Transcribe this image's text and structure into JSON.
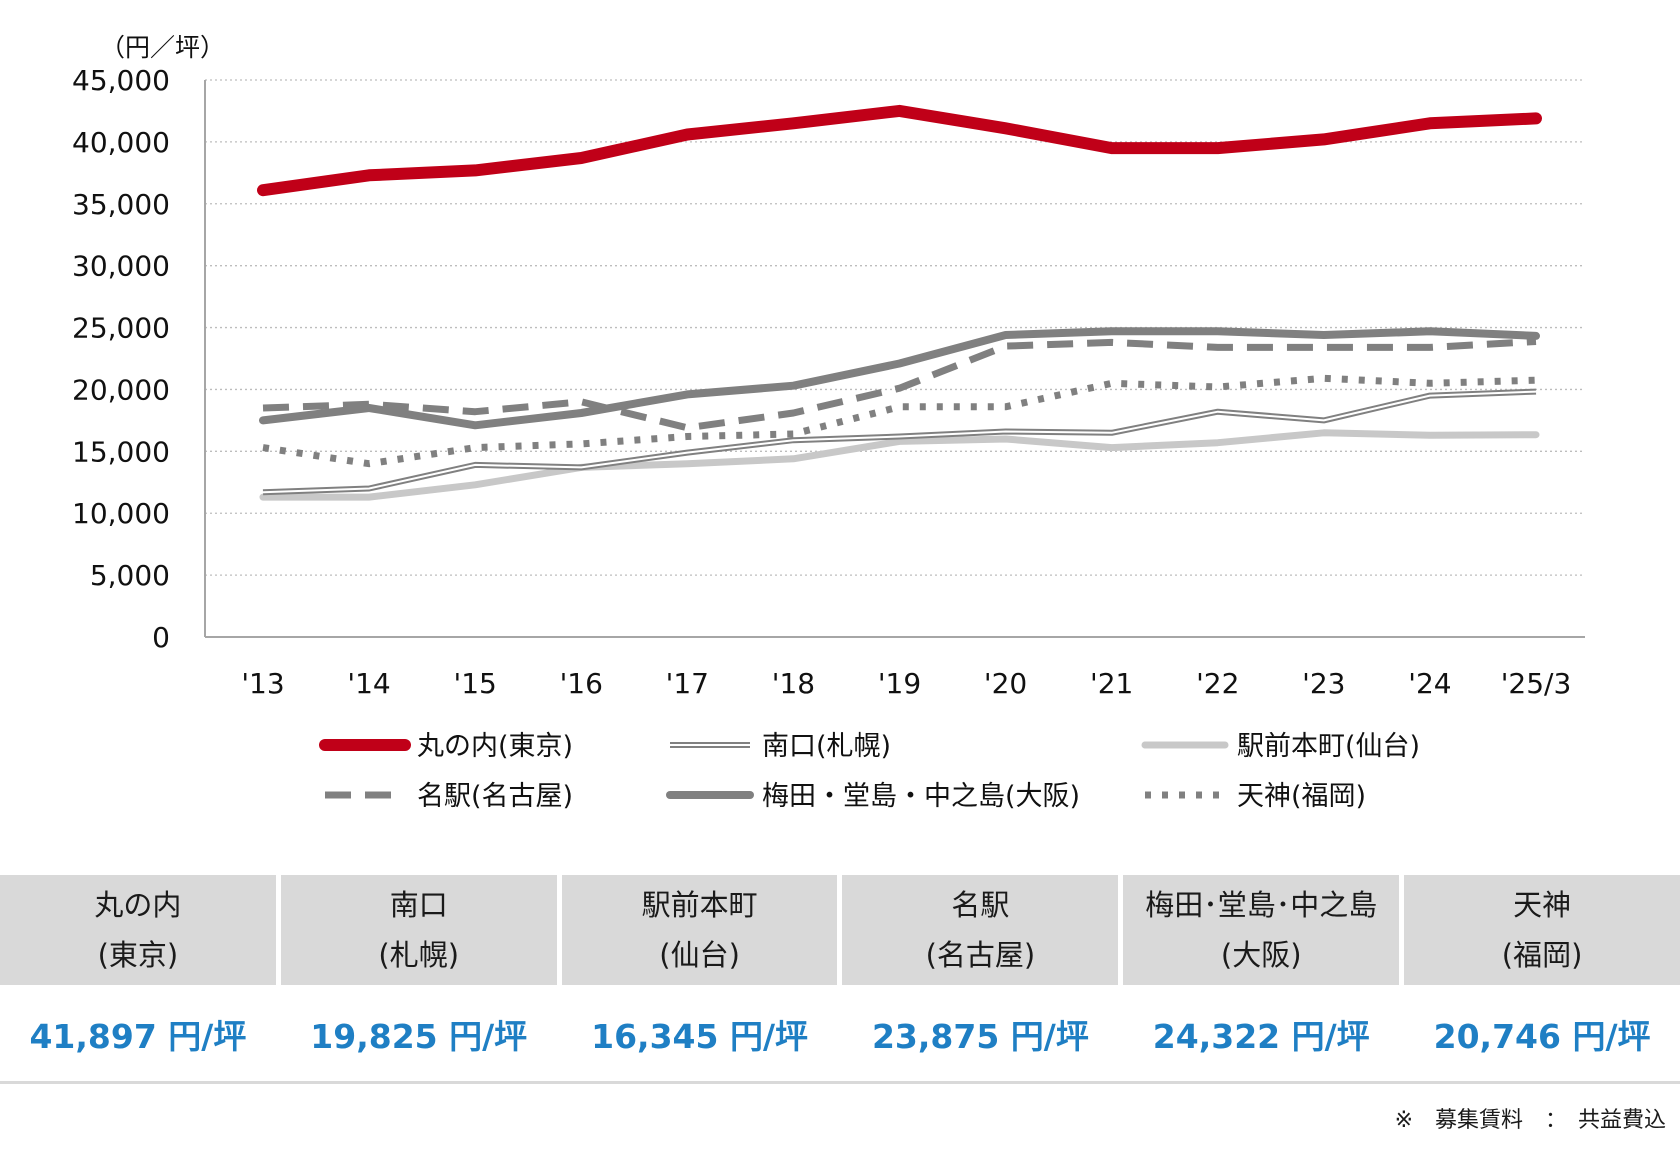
{
  "chart_data": {
    "type": "line",
    "unit_label": "（円／坪）",
    "categories": [
      "'13",
      "'14",
      "'15",
      "'16",
      "'17",
      "'18",
      "'19",
      "'20",
      "'21",
      "'22",
      "'23",
      "'24",
      "'25/3"
    ],
    "ylim": [
      0,
      45000
    ],
    "yticks": [
      0,
      5000,
      10000,
      15000,
      20000,
      25000,
      30000,
      35000,
      40000,
      45000
    ],
    "ytick_labels": [
      "0",
      "5,000",
      "10,000",
      "15,000",
      "20,000",
      "25,000",
      "30,000",
      "35,000",
      "40,000",
      "45,000"
    ],
    "grid": true,
    "legend_position": "bottom",
    "series": [
      {
        "name": "丸の内(東京)",
        "style": "solid-thick",
        "color": "#c00018",
        "values": [
          36100,
          37300,
          37700,
          38700,
          40600,
          41500,
          42500,
          41100,
          39500,
          39500,
          40200,
          41500,
          41897
        ]
      },
      {
        "name": "南口(札幌)",
        "style": "double",
        "color": "#808080",
        "values": [
          11700,
          12000,
          13900,
          13700,
          14900,
          15900,
          16200,
          16600,
          16500,
          18200,
          17500,
          19500,
          19825
        ]
      },
      {
        "name": "駅前本町(仙台)",
        "style": "solid-light",
        "color": "#c8c8c8",
        "values": [
          11300,
          11300,
          12300,
          13700,
          14000,
          14400,
          15800,
          16000,
          15300,
          15700,
          16500,
          16300,
          16345
        ]
      },
      {
        "name": "名駅(名古屋)",
        "style": "dashed",
        "color": "#808080",
        "values": [
          18500,
          18800,
          18200,
          19000,
          16900,
          18100,
          20100,
          23500,
          23800,
          23400,
          23400,
          23400,
          23875
        ]
      },
      {
        "name": "梅田・堂島・中之島(大阪)",
        "style": "solid-mid",
        "color": "#808080",
        "values": [
          17500,
          18500,
          17100,
          18100,
          19600,
          20300,
          22100,
          24400,
          24700,
          24700,
          24400,
          24700,
          24322
        ]
      },
      {
        "name": "天神(福岡)",
        "style": "dotted",
        "color": "#808080",
        "values": [
          15300,
          14000,
          15300,
          15600,
          16200,
          16400,
          18600,
          18600,
          20500,
          20200,
          20900,
          20500,
          20746
        ]
      }
    ]
  },
  "table": {
    "headers": [
      {
        "line1": "丸の内",
        "line2": "(東京)"
      },
      {
        "line1": "南口",
        "line2": "(札幌)"
      },
      {
        "line1": "駅前本町",
        "line2": "(仙台)"
      },
      {
        "line1": "名駅",
        "line2": "(名古屋)"
      },
      {
        "line1": "梅田･堂島･中之島",
        "line2": "(大阪)"
      },
      {
        "line1": "天神",
        "line2": "(福岡)"
      }
    ],
    "values": [
      "41,897 円/坪",
      "19,825 円/坪",
      "16,345 円/坪",
      "23,875 円/坪",
      "24,322 円/坪",
      "20,746 円/坪"
    ]
  },
  "footnote": "※　募集賃料　：　共益費込"
}
